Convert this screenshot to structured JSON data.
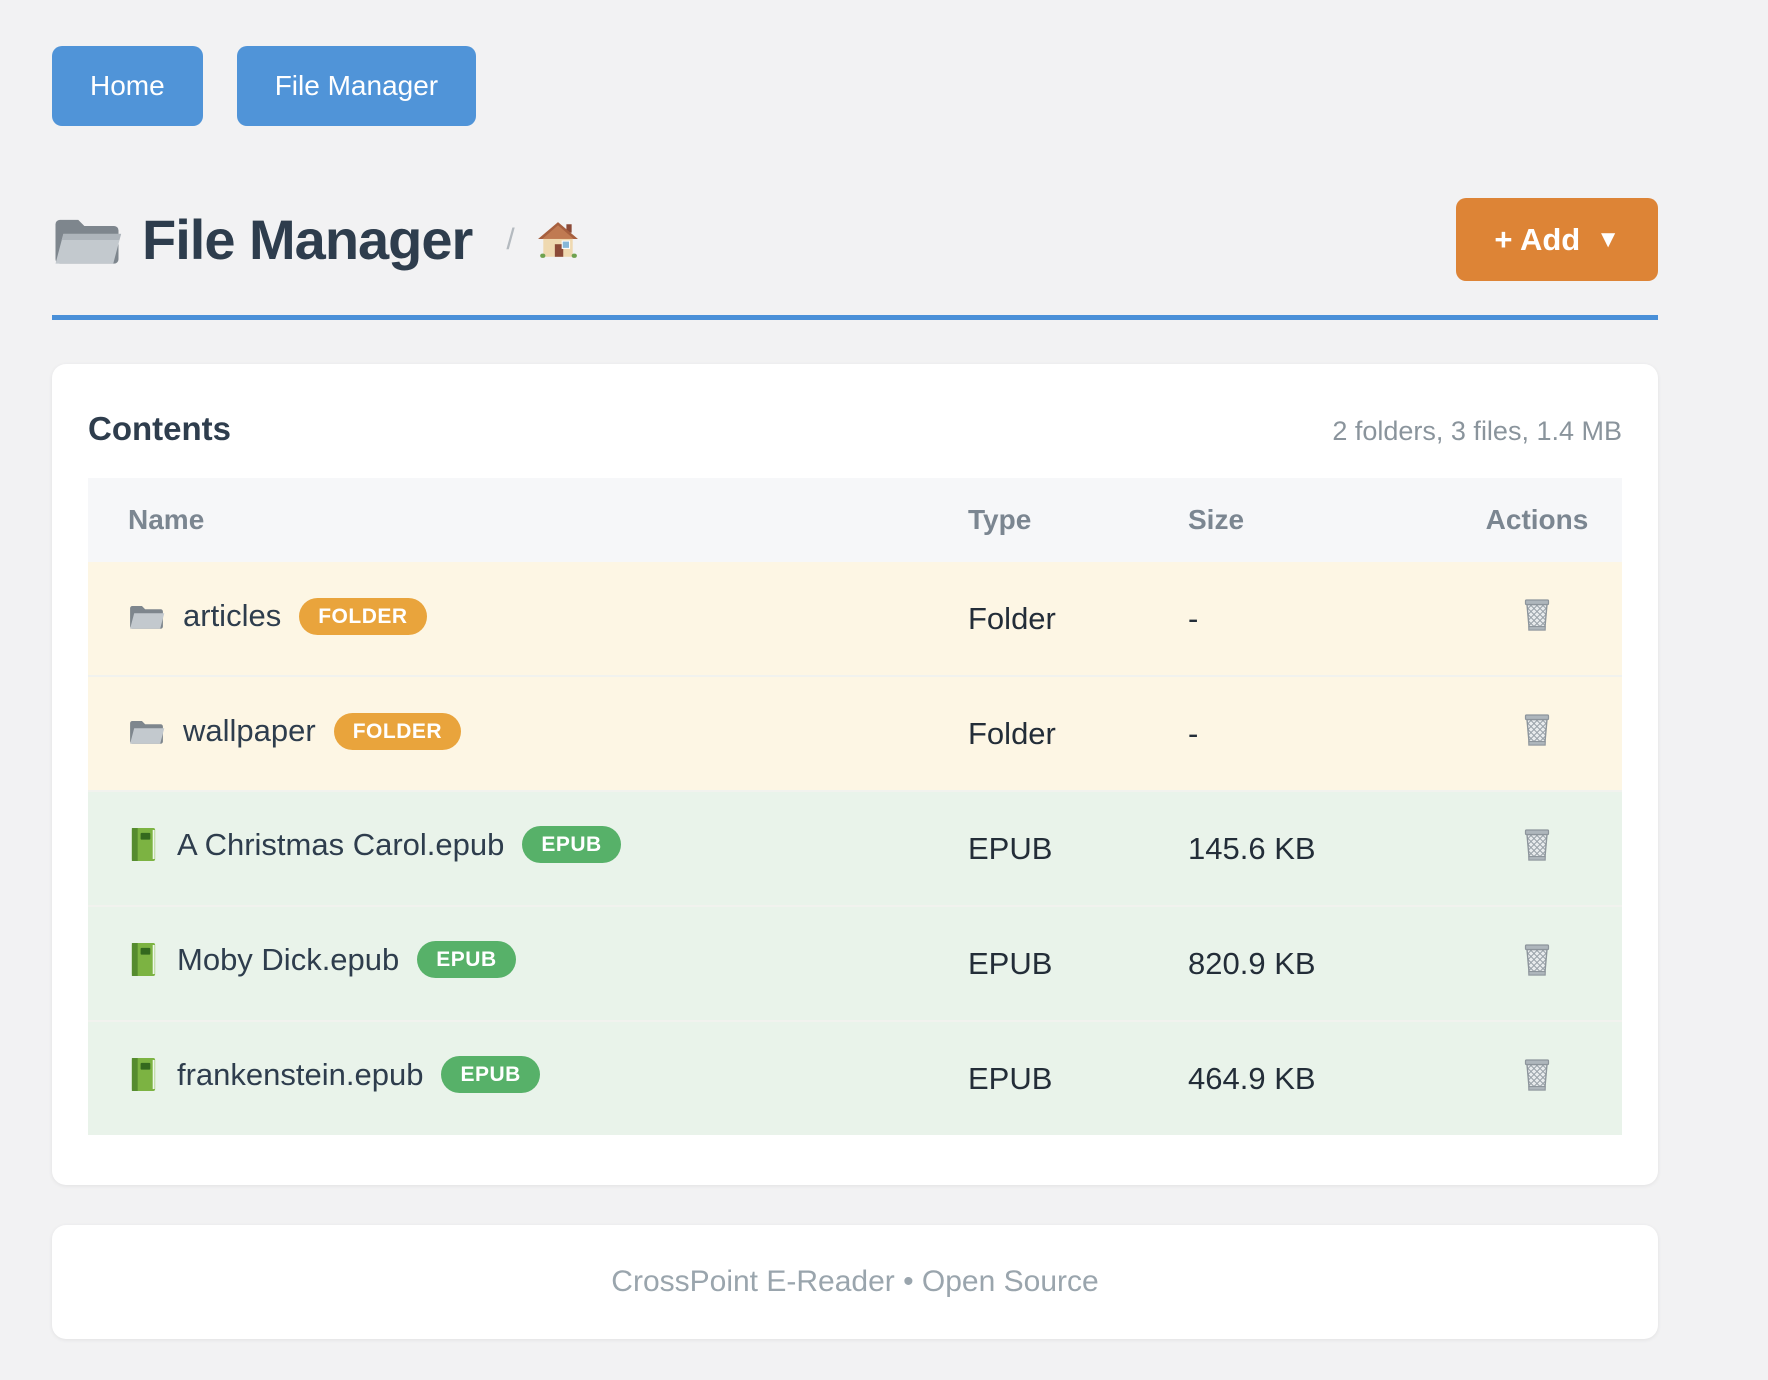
{
  "nav": {
    "buttons": [
      {
        "label": "Home"
      },
      {
        "label": "File Manager"
      }
    ]
  },
  "header": {
    "title": "File Manager",
    "title_icon": "folder-icon",
    "breadcrumb_separator": "/",
    "breadcrumb_home_icon": "home-icon",
    "add_button": {
      "label": "+ Add",
      "caret": "▼"
    }
  },
  "contents": {
    "heading": "Contents",
    "summary": "2 folders, 3 files, 1.4 MB",
    "table": {
      "columns": [
        "Name",
        "Type",
        "Size",
        "Actions"
      ],
      "action_icon": "trash-icon",
      "rows": [
        {
          "kind": "folder",
          "icon": "folder-icon",
          "name": "articles",
          "badge": "FOLDER",
          "type": "Folder",
          "size": "-"
        },
        {
          "kind": "folder",
          "icon": "folder-icon",
          "name": "wallpaper",
          "badge": "FOLDER",
          "type": "Folder",
          "size": "-"
        },
        {
          "kind": "epub",
          "icon": "book-icon",
          "name": "A Christmas Carol.epub",
          "badge": "EPUB",
          "type": "EPUB",
          "size": "145.6 KB"
        },
        {
          "kind": "epub",
          "icon": "book-icon",
          "name": "Moby Dick.epub",
          "badge": "EPUB",
          "type": "EPUB",
          "size": "820.9 KB"
        },
        {
          "kind": "epub",
          "icon": "book-icon",
          "name": "frankenstein.epub",
          "badge": "EPUB",
          "type": "EPUB",
          "size": "464.9 KB"
        }
      ]
    }
  },
  "footer": {
    "text": "CrossPoint E-Reader • Open Source"
  },
  "colors": {
    "accent_blue": "#5094d8",
    "accent_orange": "#dd8436",
    "badge_folder": "#e9a43c",
    "badge_epub": "#57b169",
    "row_folder_bg": "#fdf6e4",
    "row_epub_bg": "#e9f3ea",
    "divider_blue": "#4a90d8"
  }
}
